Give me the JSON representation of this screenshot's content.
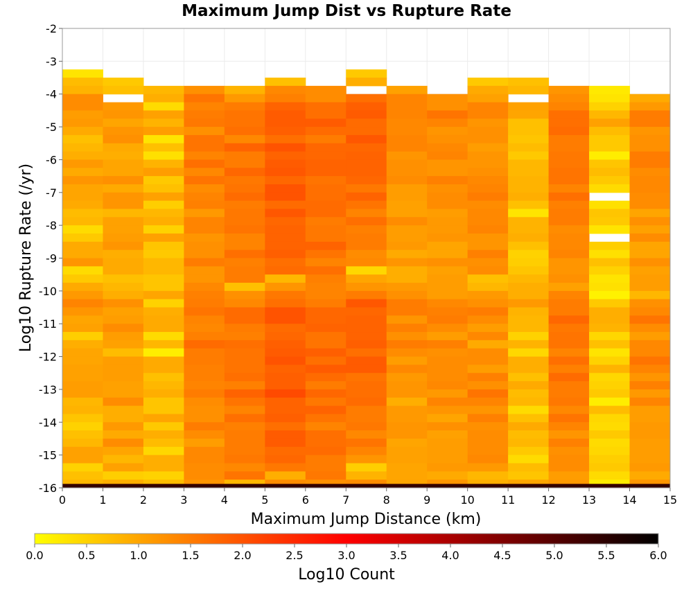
{
  "chart_data": {
    "type": "heatmap",
    "title": "Maximum Jump Dist vs Rupture Rate",
    "xlabel": "Maximum Jump Distance (km)",
    "ylabel": "Log10 Rupture Rate (/yr)",
    "xlim": [
      0,
      15
    ],
    "ylim": [
      -16,
      -2
    ],
    "x_ticks": [
      "0",
      "1",
      "2",
      "3",
      "4",
      "5",
      "6",
      "7",
      "8",
      "9",
      "10",
      "11",
      "12",
      "13",
      "14",
      "15"
    ],
    "y_ticks": [
      "-2",
      "-3",
      "-4",
      "-5",
      "-6",
      "-7",
      "-8",
      "-9",
      "-10",
      "-11",
      "-12",
      "-13",
      "-14",
      "-15",
      "-16"
    ],
    "colorbar": {
      "label": "Log10 Count",
      "range": [
        0,
        6
      ],
      "ticks": [
        "0.0",
        "0.5",
        "1.0",
        "1.5",
        "2.0",
        "2.5",
        "3.0",
        "3.5",
        "4.0",
        "4.5",
        "5.0",
        "5.5",
        "6.0"
      ],
      "colors": [
        "#ffff00",
        "#ffa500",
        "#ff0000",
        "#000000"
      ]
    },
    "grid": true,
    "x_bins": [
      "0-1",
      "1-2",
      "2-3",
      "3-4",
      "4-5",
      "5-6",
      "6-7",
      "7-8",
      "8-9",
      "9-10",
      "10-11",
      "11-12",
      "12-13",
      "13-14",
      "14-15"
    ],
    "y_bin_width": 0.25,
    "columns": [
      {
        "x": "0-1",
        "top": -3.25,
        "base": 0.9,
        "profile": [
          0.4,
          0.7,
          0.9,
          1.2,
          1.3,
          1.2,
          1.1,
          1.0,
          0.6,
          0.8,
          1.0,
          1.1,
          1.0,
          1.1,
          1.0,
          1.1,
          0.9,
          0.8,
          0.7,
          0.4,
          0.7,
          0.9,
          1.0,
          1.1
        ]
      },
      {
        "x": "1-2",
        "top": -3.5,
        "base": 1.0,
        "gaps": [
          -4.0
        ],
        "profile": [
          0.6,
          0.8,
          1.0,
          1.2,
          1.1,
          1.0,
          1.3,
          1.2,
          1.0,
          0.8,
          1.0,
          1.1,
          1.2,
          1.0,
          1.1,
          1.2,
          0.9,
          1.0,
          1.1,
          1.0,
          1.2,
          1.0,
          0.9,
          1.0
        ]
      },
      {
        "x": "2-3",
        "top": -3.75,
        "base": 0.9,
        "profile": [
          0.7,
          0.9,
          0.5,
          1.0,
          0.9,
          1.0,
          0.3,
          0.8,
          0.3,
          0.9,
          1.0,
          0.6,
          0.8,
          1.0,
          0.6,
          0.7,
          0.9,
          0.6,
          1.0,
          0.7,
          0.5,
          0.8,
          0.9,
          0.6
        ]
      },
      {
        "x": "3-4",
        "top": -3.75,
        "base": 1.4,
        "profile": [
          1.3,
          1.5,
          1.4,
          1.6,
          1.5,
          1.3,
          1.5,
          1.6,
          1.5,
          1.6,
          1.4,
          1.5,
          1.3,
          1.5,
          1.4,
          1.2,
          1.3,
          1.4,
          1.3,
          1.2,
          1.3,
          1.4,
          1.2,
          1.3
        ]
      },
      {
        "x": "4-5",
        "top": -3.75,
        "base": 1.5,
        "profile": [
          0.8,
          1.2,
          1.4,
          1.6,
          1.7,
          1.6,
          1.4,
          1.7,
          1.5,
          1.6,
          1.7,
          1.6,
          1.5,
          1.7,
          1.6,
          1.5,
          1.6,
          1.5,
          1.4,
          1.5,
          1.6,
          1.5,
          1.4,
          1.5
        ]
      },
      {
        "x": "5-6",
        "top": -3.5,
        "base": 1.7,
        "profile": [
          0.8,
          1.3,
          1.5,
          1.7,
          1.9,
          2.0,
          1.8,
          1.7,
          1.9,
          1.8,
          2.0,
          1.9,
          1.8,
          1.9,
          2.0,
          1.8,
          1.9,
          1.8,
          1.7,
          1.8,
          1.9,
          1.8,
          1.7,
          1.6
        ]
      },
      {
        "x": "6-7",
        "top": -3.75,
        "base": 1.6,
        "profile": [
          1.3,
          1.4,
          1.6,
          1.7,
          1.8,
          1.7,
          1.6,
          1.7,
          1.8,
          1.7,
          1.8,
          1.7,
          1.6,
          1.7,
          1.6,
          1.7,
          1.6,
          1.5,
          1.6,
          1.7,
          1.6,
          1.5,
          1.6,
          1.5
        ]
      },
      {
        "x": "7-8",
        "top": -3.25,
        "base": 1.7,
        "gaps": [
          -3.75
        ],
        "profile": [
          0.5,
          0.9,
          1.2,
          1.6,
          1.9,
          1.8,
          1.7,
          1.8,
          1.9,
          1.8,
          1.7,
          1.8,
          1.9,
          1.7,
          1.6,
          1.7,
          1.6,
          1.5,
          1.6,
          1.5,
          1.4,
          1.5,
          1.4,
          1.3
        ]
      },
      {
        "x": "8-9",
        "top": -3.75,
        "base": 1.3,
        "profile": [
          1.1,
          1.3,
          1.4,
          1.5,
          1.3,
          1.4,
          1.3,
          1.4,
          1.3,
          1.2,
          1.3,
          1.2,
          1.1,
          1.2,
          1.0,
          1.1,
          1.2,
          1.1,
          1.2,
          1.1,
          1.0,
          1.1,
          0.9,
          1.0
        ]
      },
      {
        "x": "9-10",
        "top": -4.0,
        "base": 1.3,
        "profile": [
          1.2,
          1.3,
          1.5,
          1.4,
          1.3,
          1.2,
          1.4,
          1.3,
          1.2,
          1.3,
          1.4,
          1.3,
          1.2,
          1.3,
          1.2,
          1.1,
          1.2,
          1.1,
          1.0,
          1.1,
          1.2,
          1.1,
          1.0,
          1.1
        ]
      },
      {
        "x": "10-11",
        "top": -3.5,
        "base": 1.3,
        "profile": [
          0.7,
          0.9,
          1.1,
          1.3,
          1.4,
          1.3,
          1.2,
          1.3,
          1.0,
          1.2,
          1.3,
          1.2,
          1.4,
          1.3,
          1.5,
          1.4,
          1.3,
          1.4,
          1.3,
          1.2,
          1.3,
          1.4,
          1.3,
          1.2
        ]
      },
      {
        "x": "11-12",
        "top": -3.5,
        "base": 1.0,
        "gaps": [
          -4.0
        ],
        "profile": [
          0.7,
          0.9,
          1.0,
          1.1,
          0.9,
          0.7,
          0.8,
          0.6,
          0.8,
          0.5,
          0.8,
          0.9,
          0.8,
          0.9,
          0.8,
          0.7,
          0.4,
          0.8,
          0.9,
          0.8,
          0.7,
          0.6,
          0.5,
          0.7
        ]
      },
      {
        "x": "12-13",
        "top": -3.75,
        "base": 1.5,
        "profile": [
          1.1,
          1.3,
          1.5,
          1.6,
          1.7,
          1.6,
          1.5,
          1.6,
          1.5,
          1.6,
          1.5,
          1.6,
          1.5,
          1.6,
          1.5,
          1.4,
          1.5,
          1.4,
          1.3,
          1.4,
          1.3,
          1.2,
          1.3,
          1.2
        ]
      },
      {
        "x": "13-14",
        "top": -3.75,
        "base": 0.6,
        "gaps": [
          -7.0,
          -8.25
        ],
        "profile": [
          0.3,
          0.2,
          0.5,
          0.9,
          1.0,
          0.8,
          0.5,
          0.6,
          0.3,
          0.6,
          0.8,
          0.5,
          0.4,
          0.6,
          0.3,
          0.7,
          0.5,
          0.3,
          0.6,
          0.5,
          0.4,
          0.6,
          0.5,
          0.4
        ]
      },
      {
        "x": "14-15",
        "top": -4.0,
        "base": 1.3,
        "profile": [
          0.9,
          1.2,
          1.4,
          1.5,
          1.3,
          1.2,
          1.3,
          1.4,
          1.5,
          1.4,
          1.3,
          1.4,
          1.2,
          1.3,
          1.1,
          1.2,
          1.1,
          1.2,
          1.0,
          1.1,
          1.2,
          1.1,
          1.0,
          1.1
        ]
      }
    ],
    "bottom_row": {
      "y": -16.0,
      "value": 5.4
    }
  }
}
